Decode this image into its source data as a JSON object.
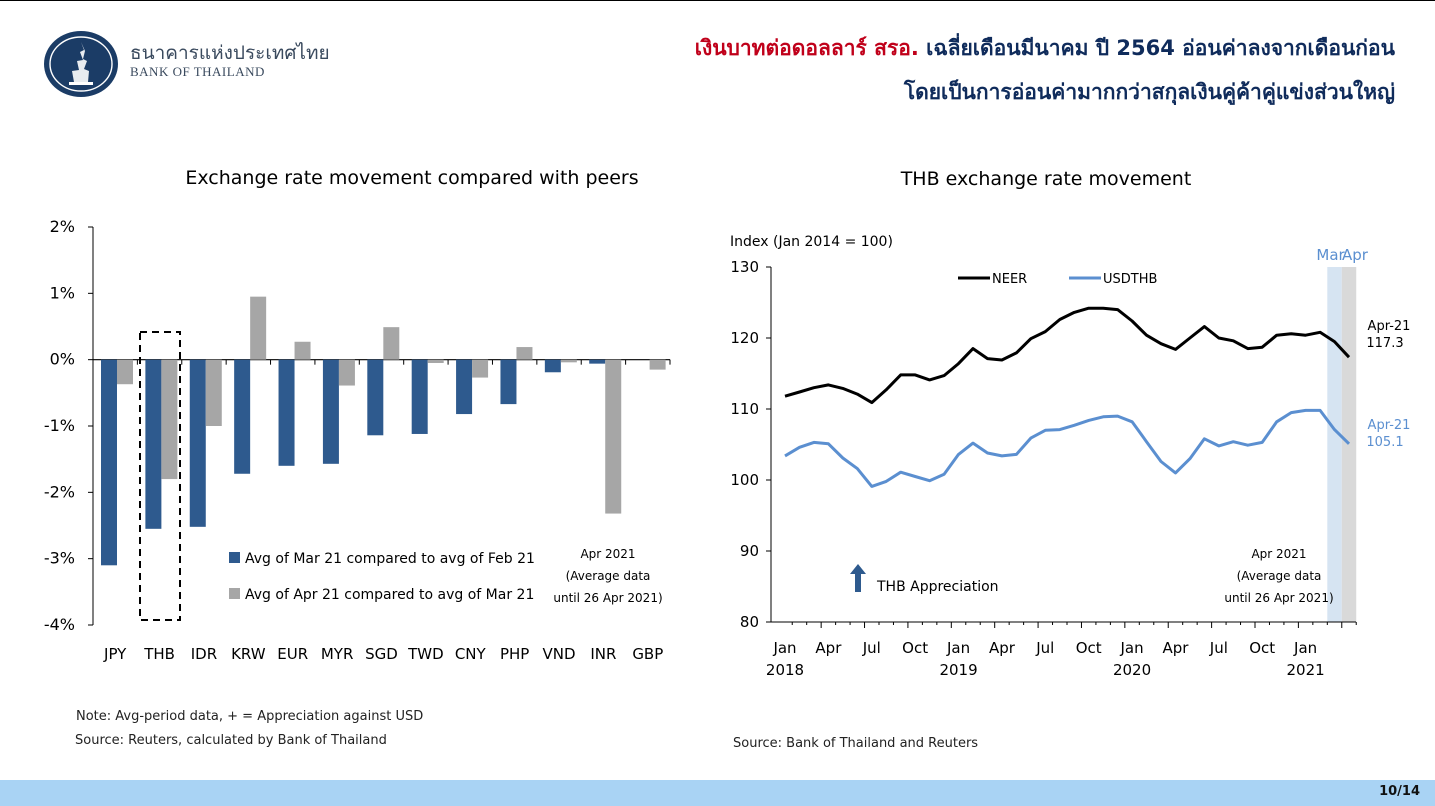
{
  "header": {
    "org_thai": "ธนาคารแห่งประเทศไทย",
    "org_en": "BANK OF THAILAND",
    "headline_red": "เงินบาทต่อดอลลาร์ สรอ.",
    "headline_rest": " เฉลี่ยเดือนมีนาคม ปี 2564 อ่อนค่าลงจากเดือนก่อน",
    "headline_line2": "โดยเป็นการอ่อนค่ามากกว่าสกุลเงินคู่ค้าคู่แข่งส่วนใหญ่"
  },
  "left_notes": {
    "note": "Note: Avg-period data, + = Appreciation against USD",
    "source": "Source: Reuters, calculated by Bank of Thailand"
  },
  "right_notes": {
    "source": "Source: Bank of Thailand and Reuters"
  },
  "page_number": "10/14",
  "colors": {
    "dark_blue": "#2e5a8e",
    "gray": "#a6a6a6",
    "neer": "#000000",
    "usdthb": "#5b8fd0",
    "shade_mar": "#d6e4f2",
    "shade_apr": "#d9d9d9",
    "red_text": "#c0001a",
    "navy_text": "#0f2b5b",
    "footer": "#a9d3f4"
  },
  "chart_data": [
    {
      "type": "bar",
      "title": "Exchange rate movement compared with peers",
      "categories": [
        "JPY",
        "THB",
        "IDR",
        "KRW",
        "EUR",
        "MYR",
        "SGD",
        "TWD",
        "CNY",
        "PHP",
        "VND",
        "INR",
        "GBP"
      ],
      "series": [
        {
          "name": "Avg of Mar 21 compared to avg of Feb 21",
          "color": "#2e5a8e",
          "values": [
            -3.1,
            -2.55,
            -2.52,
            -1.72,
            -1.6,
            -1.57,
            -1.14,
            -1.12,
            -0.82,
            -0.67,
            -0.19,
            -0.06,
            0.0
          ]
        },
        {
          "name": "Avg of Apr 21 compared to avg of Mar 21",
          "color": "#a6a6a6",
          "values": [
            -0.37,
            -1.8,
            -1.0,
            0.95,
            0.27,
            -0.39,
            0.49,
            -0.05,
            -0.27,
            0.19,
            -0.04,
            -2.32,
            -0.15
          ]
        }
      ],
      "ylim": [
        -4,
        2
      ],
      "yticks": [
        "2%",
        "1%",
        "0%",
        "-1%",
        "-2%",
        "-3%",
        "-4%"
      ],
      "highlight": "THB",
      "annotation": [
        "Apr 2021",
        "(Average data",
        "until 26 Apr 2021)"
      ],
      "legend": "bottom-center"
    },
    {
      "type": "line",
      "title": "THB exchange rate movement",
      "ylabel": "Index (Jan 2014 = 100)",
      "ylim": [
        80,
        130
      ],
      "yticks": [
        80,
        90,
        100,
        110,
        120,
        130
      ],
      "x_ticks": [
        {
          "label": "Jan",
          "year": "2018",
          "month_index": 0
        },
        {
          "label": "Apr",
          "year": "",
          "month_index": 3
        },
        {
          "label": "Jul",
          "year": "",
          "month_index": 6
        },
        {
          "label": "Oct",
          "year": "",
          "month_index": 9
        },
        {
          "label": "Jan",
          "year": "2019",
          "month_index": 12
        },
        {
          "label": "Apr",
          "year": "",
          "month_index": 15
        },
        {
          "label": "Jul",
          "year": "",
          "month_index": 18
        },
        {
          "label": "Oct",
          "year": "",
          "month_index": 21
        },
        {
          "label": "Jan",
          "year": "2020",
          "month_index": 24
        },
        {
          "label": "Apr",
          "year": "",
          "month_index": 27
        },
        {
          "label": "Jul",
          "year": "",
          "month_index": 30
        },
        {
          "label": "Oct",
          "year": "",
          "month_index": 33
        },
        {
          "label": "Jan",
          "year": "2021",
          "month_index": 36
        }
      ],
      "series": [
        {
          "name": "NEER",
          "color": "#000000",
          "values": [
            111.8,
            112.4,
            113.0,
            113.4,
            112.9,
            112.1,
            110.9,
            112.7,
            114.8,
            114.8,
            114.1,
            114.7,
            116.4,
            118.5,
            117.1,
            116.9,
            117.9,
            119.9,
            120.9,
            122.6,
            123.6,
            124.2,
            124.2,
            124.0,
            122.4,
            120.4,
            119.2,
            118.4,
            120.0,
            121.6,
            120.0,
            119.6,
            118.5,
            118.7,
            120.4,
            120.6,
            120.4,
            120.8,
            119.5,
            117.3
          ]
        },
        {
          "name": "USDTHB",
          "color": "#5b8fd0",
          "values": [
            103.4,
            104.6,
            105.3,
            105.1,
            103.1,
            101.6,
            99.1,
            99.8,
            101.1,
            100.5,
            99.9,
            100.8,
            103.6,
            105.2,
            103.8,
            103.4,
            103.6,
            105.9,
            107.0,
            107.1,
            107.7,
            108.4,
            108.9,
            109.0,
            108.2,
            105.4,
            102.6,
            101.0,
            103.0,
            105.8,
            104.8,
            105.4,
            104.9,
            105.3,
            108.2,
            109.5,
            109.8,
            109.8,
            107.1,
            105.1
          ]
        }
      ],
      "shaded": [
        {
          "label": "Mar"
        },
        {
          "label": "Apr"
        }
      ],
      "end_labels": [
        {
          "series": "NEER",
          "period": "Apr-21",
          "value": "117.3"
        },
        {
          "series": "USDTHB",
          "period": "Apr-21",
          "value": "105.1"
        }
      ],
      "arrow_annotation": "THB Appreciation",
      "annotation": [
        "Apr 2021",
        "(Average data",
        "until 26 Apr 2021)"
      ],
      "legend": "top-center"
    }
  ]
}
